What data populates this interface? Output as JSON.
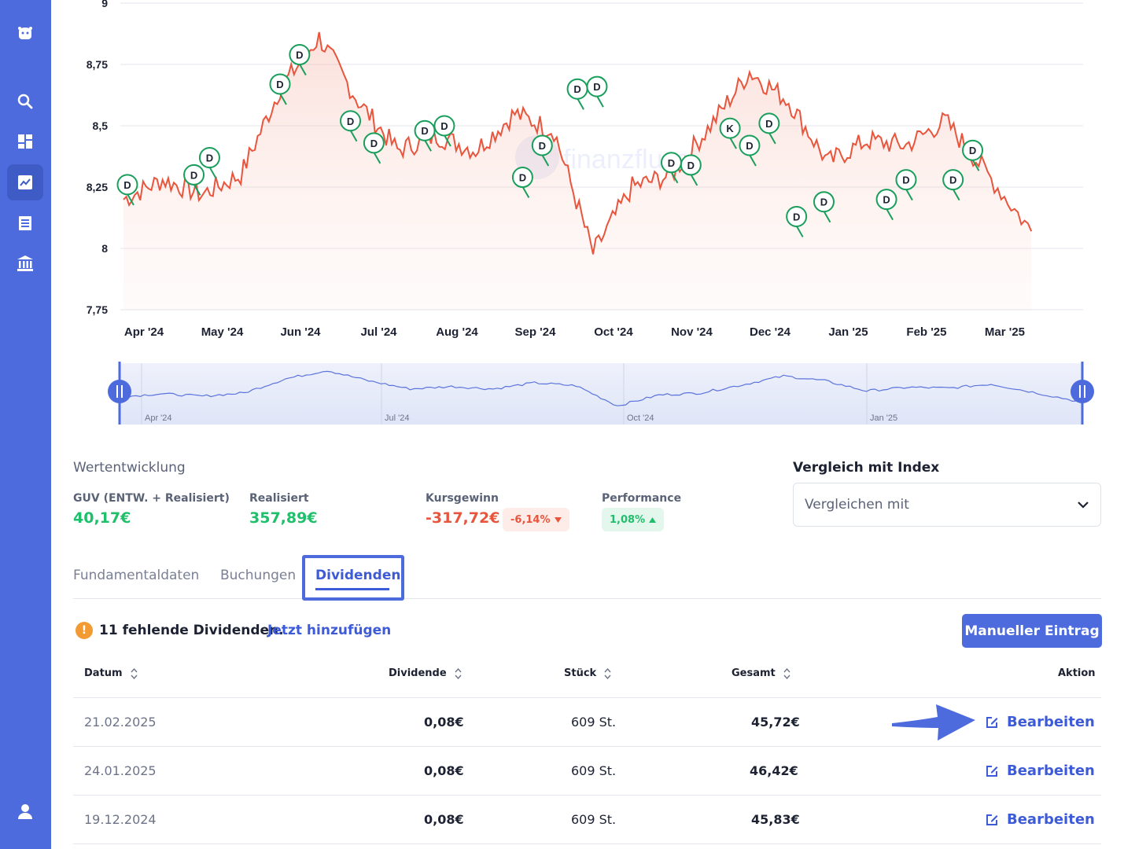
{
  "sidebar": {
    "icons": [
      "logo-icon",
      "search-icon",
      "dashboard-icon",
      "chart-icon",
      "list-icon",
      "bank-icon",
      "user-icon"
    ],
    "active": "chart-icon",
    "accent": "#4d6bdc"
  },
  "chart_data": {
    "type": "line",
    "ylim": [
      7.75,
      9
    ],
    "yticks": [
      "9",
      "8,75",
      "8,5",
      "8,25",
      "8",
      "7,75"
    ],
    "xticks": [
      "Apr '24",
      "May '24",
      "Jun '24",
      "Jul '24",
      "Aug '24",
      "Sep '24",
      "Oct '24",
      "Nov '24",
      "Dec '24",
      "Jan '25",
      "Feb '25",
      "Mar '25"
    ],
    "line_color": "#e8553d",
    "watermark": "finanzfluss",
    "series": [
      {
        "x": [
          0,
          0.5,
          1,
          1.5,
          2,
          2.5,
          3,
          3.5,
          4,
          4.5,
          5,
          5.5,
          6,
          6.5,
          7,
          7.5,
          8,
          8.5,
          9,
          9.5,
          10,
          10.5,
          11,
          11.6
        ],
        "y": [
          8.2,
          8.28,
          8.22,
          8.3,
          8.65,
          8.86,
          8.6,
          8.4,
          8.46,
          8.4,
          8.55,
          8.48,
          7.98,
          8.25,
          8.3,
          8.5,
          8.72,
          8.6,
          8.35,
          8.44,
          8.42,
          8.52,
          8.32,
          8.07
        ]
      }
    ],
    "markers": [
      {
        "label": "D",
        "x": 0.05,
        "y": 8.26
      },
      {
        "label": "D",
        "x": 0.9,
        "y": 8.3
      },
      {
        "label": "D",
        "x": 1.1,
        "y": 8.37
      },
      {
        "label": "D",
        "x": 2.0,
        "y": 8.67
      },
      {
        "label": "D",
        "x": 2.25,
        "y": 8.79
      },
      {
        "label": "D",
        "x": 2.9,
        "y": 8.52
      },
      {
        "label": "D",
        "x": 3.2,
        "y": 8.43
      },
      {
        "label": "D",
        "x": 3.85,
        "y": 8.48
      },
      {
        "label": "D",
        "x": 4.1,
        "y": 8.5
      },
      {
        "label": "D",
        "x": 5.1,
        "y": 8.29
      },
      {
        "label": "D",
        "x": 5.35,
        "y": 8.42
      },
      {
        "label": "D",
        "x": 5.8,
        "y": 8.65
      },
      {
        "label": "D",
        "x": 6.05,
        "y": 8.66
      },
      {
        "label": "D",
        "x": 7.0,
        "y": 8.35
      },
      {
        "label": "D",
        "x": 7.25,
        "y": 8.34
      },
      {
        "label": "K",
        "x": 7.75,
        "y": 8.49
      },
      {
        "label": "D",
        "x": 8.0,
        "y": 8.42
      },
      {
        "label": "D",
        "x": 8.25,
        "y": 8.51
      },
      {
        "label": "D",
        "x": 8.6,
        "y": 8.13
      },
      {
        "label": "D",
        "x": 8.95,
        "y": 8.19
      },
      {
        "label": "D",
        "x": 9.75,
        "y": 8.2
      },
      {
        "label": "D",
        "x": 10.0,
        "y": 8.28
      },
      {
        "label": "D",
        "x": 10.6,
        "y": 8.28
      },
      {
        "label": "D",
        "x": 10.85,
        "y": 8.4
      }
    ],
    "navigator_labels": [
      "Apr '24",
      "Jul '24",
      "Oct '24",
      "Jan '25"
    ]
  },
  "stats": {
    "section_title": "Wertentwicklung",
    "guv_label": "GUV (ENTW. + Realisiert)",
    "guv_value": "40,17€",
    "realized_label": "Realisiert",
    "realized_value": "357,89€",
    "kurs_label": "Kursgewinn",
    "kurs_value": "-317,72€",
    "kurs_pct": "-6,14%",
    "perf_label": "Performance",
    "perf_pct": "1,08%"
  },
  "compare": {
    "title": "Vergleich mit Index",
    "placeholder": "Vergleichen mit"
  },
  "tabs": {
    "fundamentals": "Fundamentaldaten",
    "bookings": "Buchungen",
    "dividends": "Dividenden"
  },
  "missing": {
    "text": "11 fehlende Dividenden.",
    "link": "Jetzt hinzufügen",
    "button": "Manueller Eintrag"
  },
  "table": {
    "headers": {
      "date": "Datum",
      "dividend": "Dividende",
      "pieces": "Stück",
      "total": "Gesamt",
      "action": "Aktion"
    },
    "rows": [
      {
        "date": "21.02.2025",
        "dividend": "0,08€",
        "pieces": "609 St.",
        "total": "45,72€",
        "action": "Bearbeiten"
      },
      {
        "date": "24.01.2025",
        "dividend": "0,08€",
        "pieces": "609 St.",
        "total": "46,42€",
        "action": "Bearbeiten"
      },
      {
        "date": "19.12.2024",
        "dividend": "0,08€",
        "pieces": "609 St.",
        "total": "45,83€",
        "action": "Bearbeiten"
      }
    ]
  }
}
